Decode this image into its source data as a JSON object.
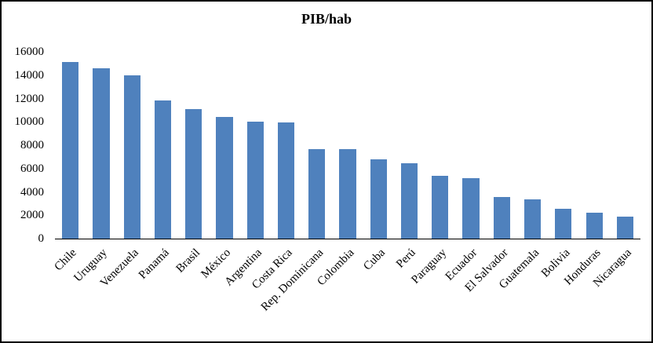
{
  "chart_data": {
    "type": "bar",
    "title": "PIB/hab",
    "categories": [
      "Chile",
      "Uruguay",
      "Venezuela",
      "Panamá",
      "Brasil",
      "México",
      "Argentina",
      "Costa Rica",
      "Rep. Dominicana",
      "Colombia",
      "Cuba",
      "Perú",
      "Paraguay",
      "Ecuador",
      "El Salvador",
      "Guatemala",
      "Bolivia",
      "Honduras",
      "Nicaragua"
    ],
    "values": [
      15100,
      14600,
      14000,
      11800,
      11100,
      10400,
      10000,
      9950,
      7650,
      7650,
      6800,
      6450,
      5350,
      5200,
      3550,
      3350,
      2550,
      2250,
      1900
    ],
    "xlabel": "",
    "ylabel": "",
    "ylim": [
      0,
      16000
    ],
    "ytick_step": 2000,
    "ytick_labels": [
      "0",
      "2000",
      "4000",
      "6000",
      "8000",
      "10000",
      "12000",
      "14000",
      "16000"
    ],
    "bar_color": "#4F81BD",
    "grid": false,
    "legend_position": "none",
    "background_color": "#ffffff",
    "border_color": "#000000"
  }
}
